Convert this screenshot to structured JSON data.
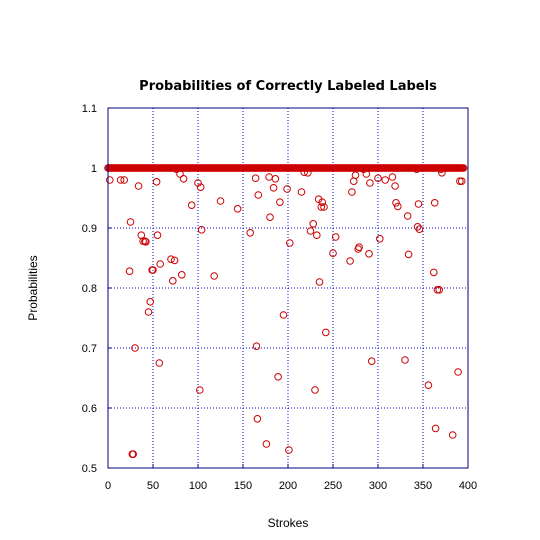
{
  "chart_data": {
    "type": "scatter",
    "title": "Probabilities of Correctly Labeled Labels",
    "xlabel": "Strokes",
    "ylabel": "Probabilities",
    "xlim": [
      0,
      400
    ],
    "ylim": [
      0.5,
      1.1
    ],
    "xticks": [
      "0",
      "50",
      "100",
      "150",
      "200",
      "250",
      "300",
      "350",
      "400"
    ],
    "yticks": [
      "0.5",
      "0.6",
      "0.7",
      "0.8",
      "0.9",
      "1",
      "1.1"
    ],
    "grid": true,
    "marker": "open-circle",
    "colors": {
      "marker": "#cc0000",
      "grid": "#0000cc",
      "axes": "#000080"
    },
    "baseline": {
      "y": 1.0,
      "x_from": 0,
      "x_to": 395
    },
    "points": [
      [
        2,
        0.98
      ],
      [
        14,
        0.98
      ],
      [
        18,
        0.98
      ],
      [
        24,
        0.828
      ],
      [
        25,
        0.91
      ],
      [
        27,
        0.523
      ],
      [
        28,
        0.523
      ],
      [
        30,
        0.7
      ],
      [
        34,
        0.97
      ],
      [
        37,
        0.888
      ],
      [
        39,
        0.878
      ],
      [
        41,
        0.878
      ],
      [
        42,
        0.877
      ],
      [
        45,
        0.76
      ],
      [
        47,
        0.777
      ],
      [
        49,
        0.83
      ],
      [
        50,
        0.83
      ],
      [
        54,
        0.977
      ],
      [
        55,
        0.888
      ],
      [
        57,
        0.675
      ],
      [
        58,
        0.84
      ],
      [
        70,
        0.848
      ],
      [
        72,
        0.812
      ],
      [
        74,
        0.846
      ],
      [
        76,
        0.998
      ],
      [
        80,
        0.99
      ],
      [
        82,
        0.822
      ],
      [
        84,
        0.982
      ],
      [
        93,
        0.938
      ],
      [
        100,
        0.975
      ],
      [
        102,
        0.63
      ],
      [
        103,
        0.968
      ],
      [
        104,
        0.897
      ],
      [
        118,
        0.82
      ],
      [
        125,
        0.945
      ],
      [
        144,
        0.932
      ],
      [
        158,
        0.892
      ],
      [
        164,
        0.983
      ],
      [
        165,
        0.703
      ],
      [
        166,
        0.582
      ],
      [
        167,
        0.955
      ],
      [
        176,
        0.54
      ],
      [
        179,
        0.985
      ],
      [
        180,
        0.918
      ],
      [
        184,
        0.967
      ],
      [
        186,
        0.982
      ],
      [
        189,
        0.652
      ],
      [
        191,
        0.943
      ],
      [
        195,
        0.755
      ],
      [
        199,
        0.965
      ],
      [
        201,
        0.53
      ],
      [
        202,
        0.875
      ],
      [
        215,
        0.96
      ],
      [
        218,
        0.993
      ],
      [
        222,
        0.992
      ],
      [
        225,
        0.895
      ],
      [
        228,
        0.907
      ],
      [
        230,
        0.63
      ],
      [
        232,
        0.888
      ],
      [
        234,
        0.948
      ],
      [
        235,
        0.81
      ],
      [
        237,
        0.935
      ],
      [
        238,
        0.943
      ],
      [
        240,
        0.935
      ],
      [
        242,
        0.726
      ],
      [
        250,
        0.858
      ],
      [
        253,
        0.885
      ],
      [
        269,
        0.845
      ],
      [
        271,
        0.96
      ],
      [
        273,
        0.978
      ],
      [
        275,
        0.988
      ],
      [
        278,
        0.865
      ],
      [
        279,
        0.868
      ],
      [
        284,
        0.998
      ],
      [
        287,
        0.99
      ],
      [
        290,
        0.857
      ],
      [
        291,
        0.975
      ],
      [
        293,
        0.678
      ],
      [
        300,
        0.983
      ],
      [
        302,
        0.882
      ],
      [
        308,
        0.98
      ],
      [
        316,
        0.985
      ],
      [
        319,
        0.97
      ],
      [
        320,
        0.942
      ],
      [
        322,
        0.936
      ],
      [
        330,
        0.68
      ],
      [
        333,
        0.92
      ],
      [
        334,
        0.856
      ],
      [
        343,
        0.998
      ],
      [
        344,
        0.902
      ],
      [
        345,
        0.94
      ],
      [
        346,
        0.898
      ],
      [
        356,
        0.638
      ],
      [
        362,
        0.826
      ],
      [
        363,
        0.942
      ],
      [
        364,
        0.566
      ],
      [
        366,
        0.797
      ],
      [
        368,
        0.797
      ],
      [
        370,
        0.998
      ],
      [
        371,
        0.992
      ],
      [
        383,
        0.555
      ],
      [
        389,
        0.66
      ],
      [
        391,
        0.978
      ],
      [
        393,
        0.978
      ]
    ]
  }
}
